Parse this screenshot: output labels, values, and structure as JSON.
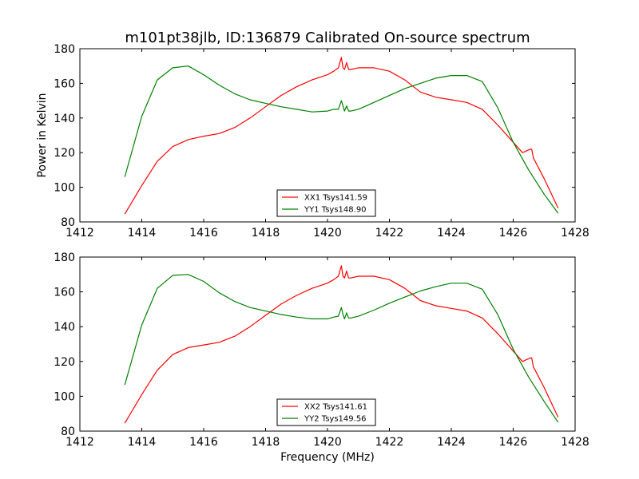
{
  "title": "m101pt38jlb, ID:136879 Calibrated On-source spectrum",
  "chart_data": [
    {
      "type": "line",
      "ylabel": "Power in Kelvin",
      "xlabel": "",
      "xlim": [
        1412,
        1428
      ],
      "ylim": [
        80,
        180
      ],
      "xticks": [
        1412,
        1414,
        1416,
        1418,
        1420,
        1422,
        1424,
        1426,
        1428
      ],
      "yticks": [
        80,
        100,
        120,
        140,
        160,
        180
      ],
      "legend_position": "lower-center",
      "series": [
        {
          "name": "XX1 Tsys141.59",
          "color": "#ff0000",
          "x": [
            1413.45,
            1414.0,
            1414.5,
            1415.0,
            1415.5,
            1416.0,
            1416.5,
            1417.0,
            1417.5,
            1418.0,
            1418.5,
            1419.0,
            1419.5,
            1420.0,
            1420.2,
            1420.35,
            1420.45,
            1420.5,
            1420.55,
            1420.62,
            1420.68,
            1420.75,
            1421.0,
            1421.5,
            1422.0,
            1422.5,
            1423.0,
            1423.5,
            1424.0,
            1424.5,
            1425.0,
            1425.5,
            1426.0,
            1426.3,
            1426.55,
            1426.6,
            1426.65,
            1427.0,
            1427.45
          ],
          "values": [
            84.5,
            101,
            115,
            123.5,
            127.5,
            129.5,
            131,
            134.5,
            140,
            146.5,
            153,
            158,
            162,
            165,
            167,
            169,
            175,
            169,
            168,
            172,
            168,
            168,
            169,
            169,
            167,
            162,
            155,
            152,
            150.5,
            149,
            145,
            136,
            126,
            120,
            122,
            122,
            117,
            105,
            88
          ]
        },
        {
          "name": "YY1 Tsys148.90",
          "color": "#008000",
          "x": [
            1413.45,
            1414.0,
            1414.5,
            1415.0,
            1415.5,
            1416.0,
            1416.5,
            1417.0,
            1417.5,
            1418.0,
            1418.5,
            1419.0,
            1419.5,
            1420.0,
            1420.2,
            1420.35,
            1420.45,
            1420.5,
            1420.55,
            1420.62,
            1420.68,
            1420.75,
            1421.0,
            1421.5,
            1422.0,
            1422.5,
            1423.0,
            1423.5,
            1424.0,
            1424.5,
            1425.0,
            1425.5,
            1426.0,
            1426.5,
            1427.0,
            1427.45
          ],
          "values": [
            106,
            141,
            162,
            169,
            170,
            165,
            159,
            154,
            150.5,
            148.5,
            146.5,
            145,
            143.5,
            144,
            145,
            145,
            150,
            147,
            144,
            147,
            144,
            144,
            145,
            149,
            153,
            157,
            160,
            163,
            164.5,
            164.5,
            161,
            146,
            126,
            110,
            96,
            85
          ]
        }
      ]
    },
    {
      "type": "line",
      "ylabel": "",
      "xlabel": "Frequency (MHz)",
      "xlim": [
        1412,
        1428
      ],
      "ylim": [
        80,
        180
      ],
      "xticks": [
        1412,
        1414,
        1416,
        1418,
        1420,
        1422,
        1424,
        1426,
        1428
      ],
      "yticks": [
        80,
        100,
        120,
        140,
        160,
        180
      ],
      "legend_position": "lower-center",
      "series": [
        {
          "name": "XX2 Tsys141.61",
          "color": "#ff0000",
          "x": [
            1413.45,
            1414.0,
            1414.5,
            1415.0,
            1415.5,
            1416.0,
            1416.5,
            1417.0,
            1417.5,
            1418.0,
            1418.5,
            1419.0,
            1419.5,
            1420.0,
            1420.2,
            1420.35,
            1420.45,
            1420.5,
            1420.55,
            1420.62,
            1420.68,
            1420.75,
            1421.0,
            1421.5,
            1422.0,
            1422.5,
            1423.0,
            1423.5,
            1424.0,
            1424.5,
            1425.0,
            1425.5,
            1426.0,
            1426.3,
            1426.55,
            1426.6,
            1426.65,
            1427.0,
            1427.45
          ],
          "values": [
            84.5,
            101,
            115,
            124,
            128,
            129.5,
            131,
            134.5,
            140,
            146.5,
            153,
            158,
            162,
            165,
            167,
            169,
            175,
            169,
            168,
            172,
            168,
            168,
            169,
            169,
            167,
            162,
            155,
            152,
            150.5,
            149,
            145,
            136,
            126,
            120,
            122,
            122,
            117,
            105,
            88
          ]
        },
        {
          "name": "YY2 Tsys149.56",
          "color": "#008000",
          "x": [
            1413.45,
            1414.0,
            1414.5,
            1415.0,
            1415.5,
            1416.0,
            1416.5,
            1417.0,
            1417.5,
            1418.0,
            1418.5,
            1419.0,
            1419.5,
            1420.0,
            1420.2,
            1420.35,
            1420.45,
            1420.5,
            1420.55,
            1420.62,
            1420.68,
            1420.75,
            1421.0,
            1421.5,
            1422.0,
            1422.5,
            1423.0,
            1423.5,
            1424.0,
            1424.5,
            1425.0,
            1425.5,
            1426.0,
            1426.5,
            1427.0,
            1427.45
          ],
          "values": [
            106.5,
            141,
            162,
            169.5,
            170,
            166,
            159.5,
            154.5,
            151,
            149,
            147,
            145.5,
            144.5,
            144.5,
            145.5,
            146,
            151,
            147,
            144.5,
            148,
            145,
            145,
            146,
            149.5,
            153.5,
            157,
            160.5,
            163,
            165,
            165,
            161.5,
            147,
            127,
            111,
            97,
            85
          ]
        }
      ]
    }
  ]
}
